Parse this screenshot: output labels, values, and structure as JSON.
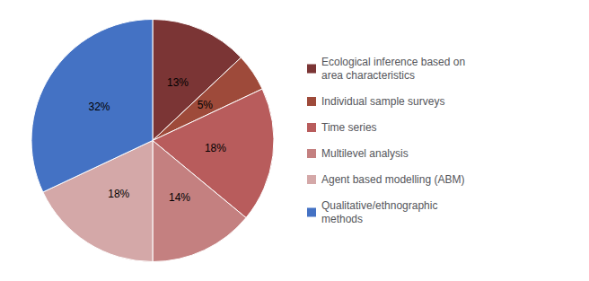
{
  "chart_data": {
    "type": "pie",
    "categories": [
      "Ecological inference based on\narea characteristics",
      "Individual sample surveys",
      "Time series",
      "Multilevel analysis",
      "Agent based modelling (ABM)",
      "Qualitative/ethnographic\nmethods"
    ],
    "values": [
      13,
      5,
      18,
      14,
      18,
      32
    ],
    "value_labels": [
      "13%",
      "5%",
      "18%",
      "14%",
      "18%",
      "32%"
    ],
    "colors": [
      "#7B3535",
      "#9E4A3A",
      "#B85C5C",
      "#C48080",
      "#D4A8A8",
      "#4472C4"
    ],
    "data_labels": true,
    "legend": "right"
  }
}
